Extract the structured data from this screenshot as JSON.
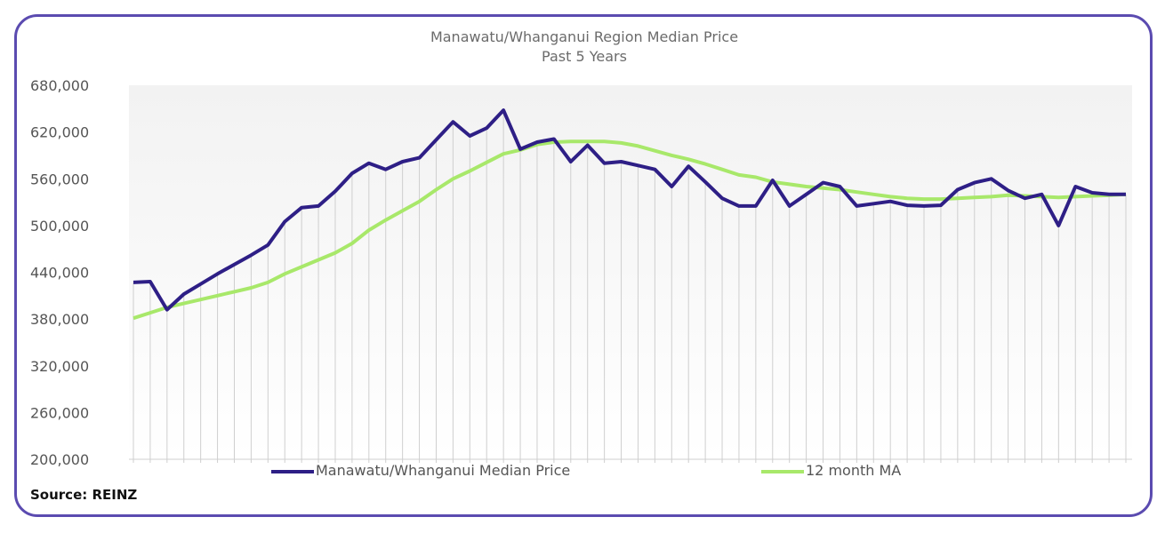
{
  "source": "Source: REINZ",
  "colors": {
    "frame": "#5b4bb0",
    "median": "#2e1f86",
    "ma": "#a8e86a",
    "vbar": "#cfcfcf",
    "bg_top": "#f3f3f3",
    "bg_bottom": "#ffffff"
  },
  "chart_data": {
    "type": "line",
    "title": "Manawatu/Whanganui Region  Median Price",
    "subtitle": "Past 5 Years",
    "ylim": [
      200000,
      680000
    ],
    "ytick_labels": [
      "680,000",
      "620,000",
      "560,000",
      "500,000",
      "440,000",
      "380,000",
      "320,000",
      "260,000",
      "200,000"
    ],
    "ytick_values": [
      680000,
      620000,
      560000,
      500000,
      440000,
      380000,
      320000,
      260000,
      200000
    ],
    "grid": "vertical drop lines",
    "legend": "bottom",
    "series": [
      {
        "name": "Manawatu/Whanganui Median Price",
        "values": [
          427000,
          428000,
          392000,
          412000,
          425000,
          438000,
          450000,
          462000,
          475000,
          505000,
          523000,
          525000,
          544000,
          567000,
          580000,
          572000,
          582000,
          587000,
          610000,
          633000,
          615000,
          625000,
          648000,
          598000,
          607000,
          611000,
          582000,
          603000,
          580000,
          582000,
          577000,
          572000,
          550000,
          576000,
          556000,
          535000,
          525000,
          525000,
          558000,
          525000,
          540000,
          555000,
          550000,
          525000,
          528000,
          531000,
          526000,
          525000,
          526000,
          546000,
          555000,
          560000,
          545000,
          535000,
          540000,
          500000,
          550000,
          542000,
          540000,
          540000
        ]
      },
      {
        "name": "12 month MA",
        "values": [
          381000,
          388000,
          395000,
          400000,
          405000,
          410000,
          415000,
          420000,
          427000,
          438000,
          447000,
          456000,
          465000,
          477000,
          494000,
          507000,
          519000,
          531000,
          546000,
          560000,
          570000,
          581000,
          592000,
          597000,
          604000,
          607000,
          608000,
          608000,
          608000,
          606000,
          602000,
          596000,
          590000,
          585000,
          579000,
          572000,
          565000,
          562000,
          556000,
          553000,
          550000,
          548000,
          546000,
          543000,
          540000,
          537000,
          535000,
          534000,
          534000,
          535000,
          536000,
          537000,
          539000,
          538000,
          537000,
          536000,
          537000,
          538000,
          539000,
          540000
        ]
      }
    ]
  }
}
